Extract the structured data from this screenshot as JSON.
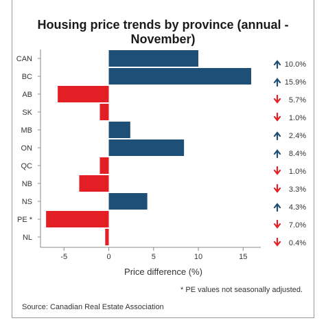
{
  "chart_data": {
    "type": "bar",
    "orientation": "horizontal",
    "title": "Housing price trends by province (annual - November)",
    "xlabel": "Price difference (%)",
    "ylabel": "",
    "categories": [
      "CAN",
      "BC",
      "AB",
      "SK",
      "MB",
      "ON",
      "QC",
      "NB",
      "NS",
      "PE *",
      "NL"
    ],
    "values": [
      10.0,
      15.9,
      -5.7,
      -1.0,
      2.4,
      8.4,
      -1.0,
      -3.3,
      4.3,
      -7.0,
      -0.4
    ],
    "value_labels": [
      "10.0%",
      "15.9%",
      "5.7%",
      "1.0%",
      "2.4%",
      "8.4%",
      "1.0%",
      "3.3%",
      "4.3%",
      "7.0%",
      "0.4%"
    ],
    "xlim": [
      -7.5,
      17
    ],
    "xticks": [
      -5,
      0,
      5,
      10,
      15
    ],
    "grid": false,
    "colors": {
      "positive": "#1d4f77",
      "negative": "#e31e24"
    },
    "icons": {
      "positive": "arrow-up-icon",
      "negative": "arrow-down-icon"
    },
    "footnote": "* PE values not seasonally adjusted.",
    "source": "Source: Canadian Real Estate Association"
  }
}
